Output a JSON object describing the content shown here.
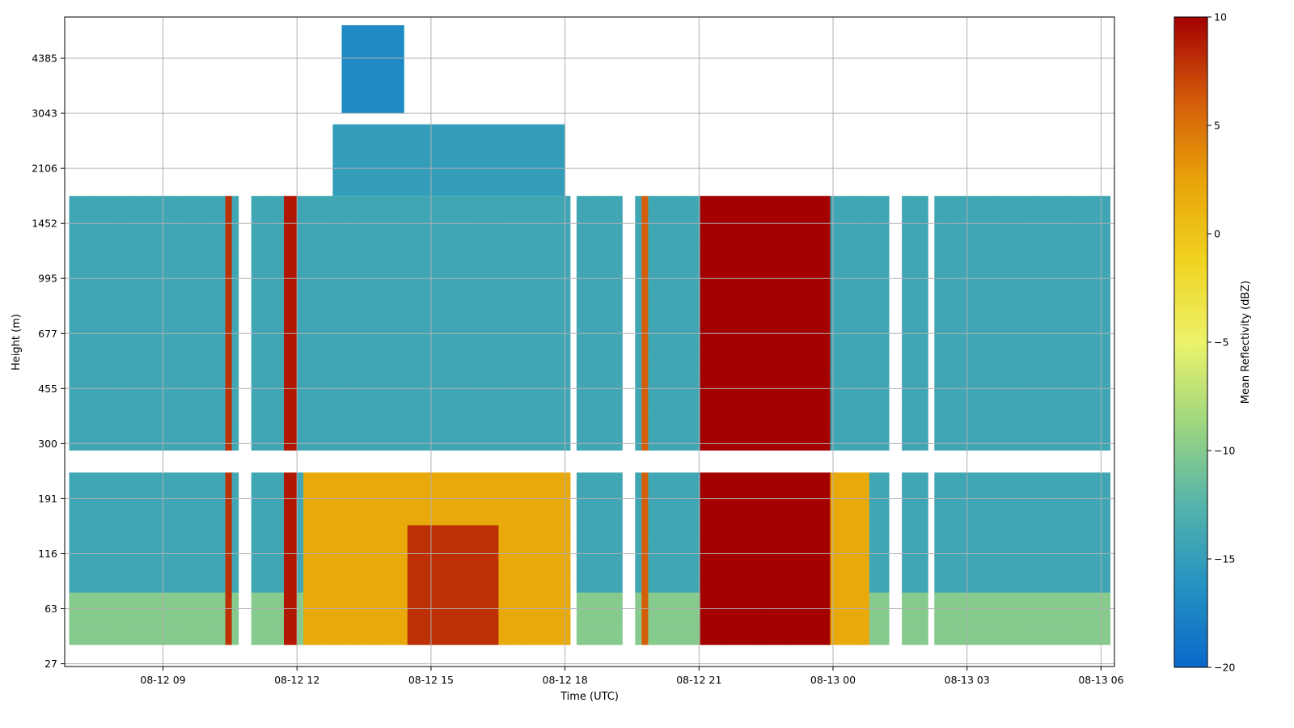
{
  "chart_data": {
    "type": "heatmap",
    "title": "",
    "xlabel": "Time (UTC)",
    "ylabel": "Height (m)",
    "x_tick_labels": [
      "08-12 09",
      "08-12 12",
      "08-12 15",
      "08-12 18",
      "08-12 21",
      "08-13 00",
      "08-13 03",
      "08-13 06"
    ],
    "x_tick_hours": [
      9,
      12,
      15,
      18,
      21,
      24,
      27,
      30
    ],
    "x_range_hours": [
      6.8,
      30.3
    ],
    "y_tick_labels": [
      "27",
      "63",
      "116",
      "191",
      "300",
      "455",
      "677",
      "995",
      "1452",
      "2106",
      "3043",
      "4385"
    ],
    "y_range_levels": [
      -0.05,
      11.75
    ],
    "grid": true,
    "colorbar": {
      "label": "Mean Reflectivity (dBZ)",
      "range": [
        -20,
        10
      ],
      "ticks": [
        -20,
        -15,
        -10,
        -5,
        0,
        5,
        10
      ],
      "colormap": [
        "#0a68c9",
        "#2492c2",
        "#55b4aa",
        "#9ed67f",
        "#ecf36a",
        "#f0d321",
        "#e8a208",
        "#d35a0b",
        "#a30000"
      ]
    },
    "data_gaps_height_levels": [
      [
        3.5,
        3.85
      ]
    ],
    "data_gaps_time_hours": [
      [
        10.7,
        11.05
      ],
      [
        18.1,
        18.3
      ],
      [
        19.3,
        19.55
      ],
      [
        25.3,
        25.5
      ],
      [
        26.1,
        26.3
      ]
    ],
    "regions": [
      {
        "name": "background-clutter",
        "t": [
          6.9,
          30.2
        ],
        "levels": [
          0.35,
          8.5
        ],
        "dbz": -14
      },
      {
        "name": "near-surface-echo",
        "t": [
          6.9,
          30.2
        ],
        "levels": [
          0.35,
          1.3
        ],
        "dbz": -10
      },
      {
        "name": "afternoon-low-level-maximum",
        "t": [
          12.2,
          18.1
        ],
        "levels": [
          0.35,
          3.5
        ],
        "dbz": 2
      },
      {
        "name": "core-15-16h",
        "t": [
          14.5,
          16.5
        ],
        "levels": [
          0.35,
          2.5
        ],
        "dbz": 8
      },
      {
        "name": "precip-column-1",
        "t": [
          10.35,
          10.6
        ],
        "levels": [
          0.35,
          8.5
        ],
        "dbz": 8
      },
      {
        "name": "precip-column-2",
        "t": [
          11.7,
          12.0
        ],
        "levels": [
          0.35,
          8.5
        ],
        "dbz": 9
      },
      {
        "name": "precip-column-3",
        "t": [
          19.7,
          19.9
        ],
        "levels": [
          0.35,
          8.5
        ],
        "dbz": 6
      },
      {
        "name": "rain-band-21-24h",
        "t": [
          21.0,
          24.0
        ],
        "levels": [
          0.35,
          8.5
        ],
        "dbz": 10
      },
      {
        "name": "rain-band-24-25h",
        "t": [
          24.0,
          24.8
        ],
        "levels": [
          0.35,
          3.5
        ],
        "dbz": 2
      },
      {
        "name": "upper-layer-12-18h",
        "t": [
          12.8,
          18.0
        ],
        "levels": [
          8.5,
          9.8
        ],
        "dbz": -15
      },
      {
        "name": "upper-cloud-fragments",
        "t": [
          13.0,
          14.4
        ],
        "levels": [
          10.0,
          11.6
        ],
        "dbz": -17
      }
    ]
  }
}
